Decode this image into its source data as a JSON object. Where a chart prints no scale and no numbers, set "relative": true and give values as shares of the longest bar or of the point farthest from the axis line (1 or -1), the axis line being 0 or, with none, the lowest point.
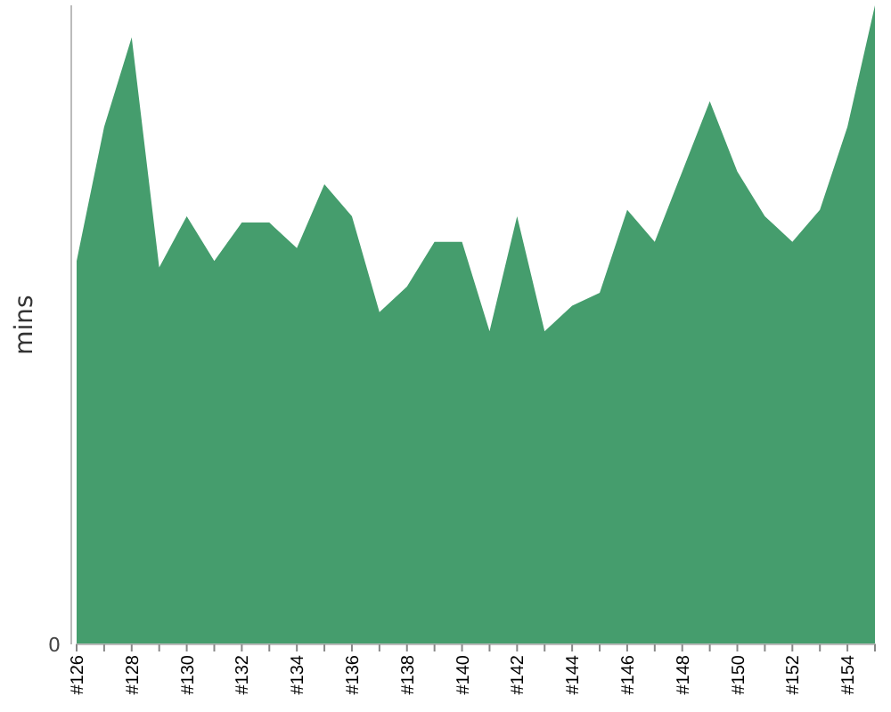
{
  "chart_data": {
    "type": "area",
    "ylabel": "mins",
    "relative": true,
    "annotations": [
      "0"
    ],
    "categories": [
      "#126",
      null,
      "#128",
      null,
      "#130",
      null,
      "#132",
      null,
      "#134",
      null,
      "#136",
      null,
      "#138",
      null,
      "#140",
      null,
      "#142",
      null,
      "#144",
      null,
      "#146",
      null,
      "#148",
      null,
      "#150",
      null,
      "#152",
      null,
      "#154",
      null
    ],
    "series": [
      {
        "color": "#459d6d",
        "values": [
          0.6,
          0.81,
          0.95,
          0.59,
          0.67,
          0.6,
          0.66,
          0.66,
          0.62,
          0.72,
          0.67,
          0.52,
          0.56,
          0.63,
          0.63,
          0.49,
          0.67,
          0.49,
          0.53,
          0.55,
          0.68,
          0.63,
          0.74,
          0.85,
          0.74,
          0.67,
          0.63,
          0.68,
          0.81,
          1
        ]
      }
    ]
  }
}
